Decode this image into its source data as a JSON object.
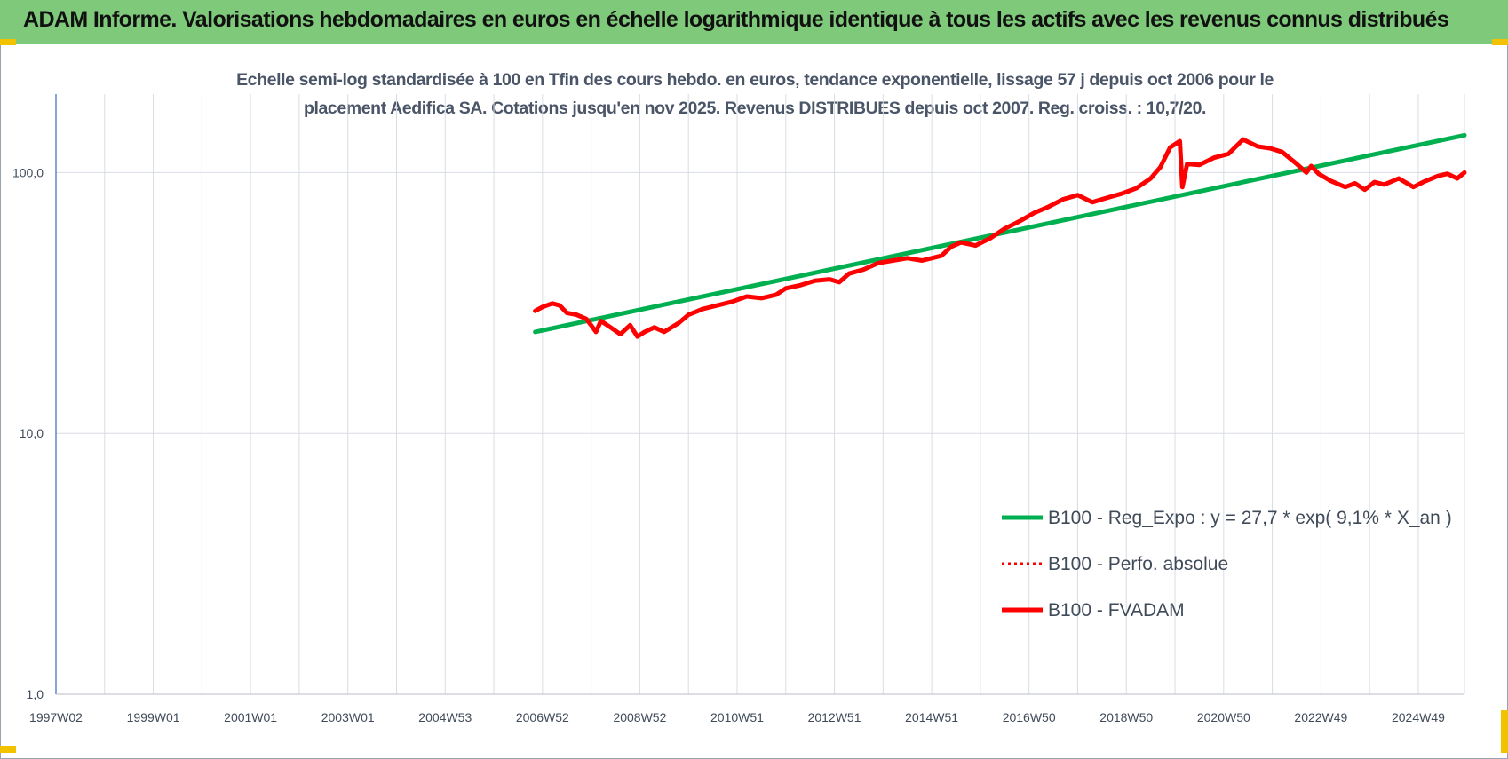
{
  "banner": {
    "title": "ADAM Informe. Valorisations hebdomadaires en euros en échelle logarithmique identique à tous les actifs avec les revenus connus distribués"
  },
  "colors": {
    "banner_bg": "#7fc97a",
    "regression": "#00b050",
    "fvadam": "#ff0000",
    "perfo": "#ff0000",
    "axis": "#4472c4",
    "grid": "#d9dde3"
  },
  "chart_data": {
    "type": "line",
    "title": "Echelle semi-log standardisée à 100 en Tfin des cours hebdo. en euros, tendance exponentielle, lissage 57 j depuis oct 2006 pour le",
    "subtitle": "placement Aedifica SA. Cotations jusqu'en nov 2025. Revenus DISTRIBUES depuis oct 2007. Reg. croiss. : 10,7/20.",
    "y_scale": "log",
    "ylim": [
      1,
      200
    ],
    "y_ticks": [
      {
        "value": 1,
        "label": "1,0"
      },
      {
        "value": 10,
        "label": "10,0"
      },
      {
        "value": 100,
        "label": "100,0"
      }
    ],
    "xlim": [
      1997.0,
      2025.95
    ],
    "x_ticks": [
      {
        "value": 1997.0,
        "label": "1997W02"
      },
      {
        "value": 1999.0,
        "label": "1999W01"
      },
      {
        "value": 2001.0,
        "label": "2001W01"
      },
      {
        "value": 2003.0,
        "label": "2003W01"
      },
      {
        "value": 2005.0,
        "label": "2004W53"
      },
      {
        "value": 2007.0,
        "label": "2006W52"
      },
      {
        "value": 2009.0,
        "label": "2008W52"
      },
      {
        "value": 2011.0,
        "label": "2010W51"
      },
      {
        "value": 2013.0,
        "label": "2012W51"
      },
      {
        "value": 2015.0,
        "label": "2014W51"
      },
      {
        "value": 2017.0,
        "label": "2016W50"
      },
      {
        "value": 2019.0,
        "label": "2018W50"
      },
      {
        "value": 2021.0,
        "label": "2020W50"
      },
      {
        "value": 2023.0,
        "label": "2022W49"
      },
      {
        "value": 2025.0,
        "label": "2024W49"
      }
    ],
    "grid": true,
    "legend_position": "bottom-right",
    "series": [
      {
        "name": "B100 - Reg_Expo : y = 27,7 * exp( 9,1% *  X_an )",
        "style": "solid-thick",
        "color": "#00b050",
        "x": [
          2006.85,
          2025.95
        ],
        "y": [
          24.5,
          139
        ]
      },
      {
        "name": "B100 - Perfo. absolue",
        "style": "dotted",
        "color": "#ff0000",
        "x": [],
        "y": []
      },
      {
        "name": "B100 - FVADAM",
        "style": "solid-thick",
        "color": "#ff0000",
        "x": [
          2006.85,
          2007.0,
          2007.2,
          2007.35,
          2007.5,
          2007.7,
          2007.9,
          2008.0,
          2008.1,
          2008.2,
          2008.4,
          2008.6,
          2008.8,
          2008.95,
          2009.1,
          2009.3,
          2009.5,
          2009.8,
          2010.0,
          2010.3,
          2010.6,
          2010.9,
          2011.2,
          2011.5,
          2011.8,
          2012.0,
          2012.3,
          2012.6,
          2012.9,
          2013.1,
          2013.3,
          2013.6,
          2013.9,
          2014.2,
          2014.5,
          2014.8,
          2015.0,
          2015.2,
          2015.4,
          2015.6,
          2015.9,
          2016.2,
          2016.5,
          2016.8,
          2017.1,
          2017.4,
          2017.7,
          2018.0,
          2018.3,
          2018.6,
          2018.9,
          2019.2,
          2019.5,
          2019.7,
          2019.9,
          2020.1,
          2020.15,
          2020.25,
          2020.5,
          2020.8,
          2021.1,
          2021.4,
          2021.7,
          2021.95,
          2022.2,
          2022.5,
          2022.7,
          2022.8,
          2022.95,
          2023.2,
          2023.5,
          2023.7,
          2023.9,
          2024.1,
          2024.3,
          2024.6,
          2024.9,
          2025.1,
          2025.4,
          2025.6,
          2025.8,
          2025.95
        ],
        "y": [
          29.5,
          30.5,
          31.5,
          31,
          29,
          28.5,
          27.5,
          26,
          24.5,
          27,
          25.5,
          24,
          26,
          23.5,
          24.5,
          25.5,
          24.5,
          26.5,
          28.5,
          30,
          31,
          32,
          33.5,
          33,
          34,
          36,
          37,
          38.5,
          39,
          38,
          41,
          42.5,
          45,
          46,
          47,
          46,
          47,
          48,
          52,
          54,
          52.5,
          56,
          61,
          65,
          70,
          74,
          79,
          82,
          77,
          80,
          83,
          87,
          95,
          105,
          125,
          132,
          88,
          108,
          107,
          114,
          118,
          134,
          126,
          124,
          120,
          108,
          100,
          106,
          99,
          93,
          88,
          91,
          86,
          92,
          90,
          95,
          88,
          92,
          97,
          99,
          95,
          100
        ]
      }
    ]
  }
}
